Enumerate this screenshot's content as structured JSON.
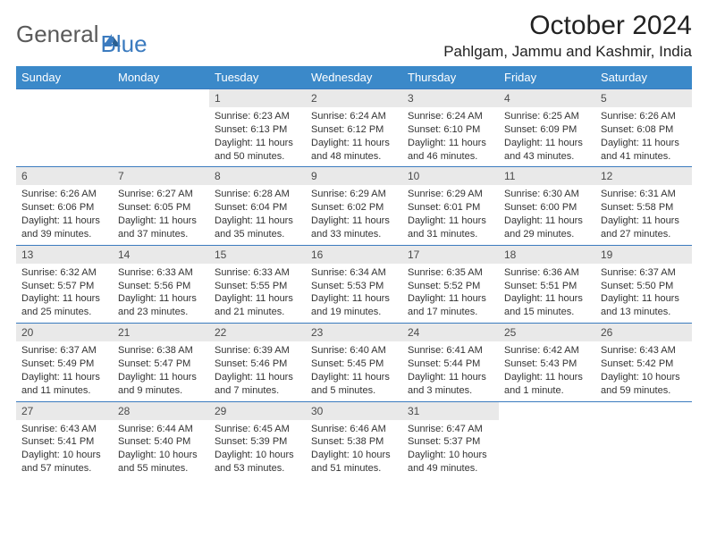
{
  "logo": {
    "part1": "General",
    "part2": "Blue"
  },
  "title": "October 2024",
  "location": "Pahlgam, Jammu and Kashmir, India",
  "colors": {
    "header_bg": "#3b89c9",
    "header_text": "#ffffff",
    "daynum_bg": "#e9e9e9",
    "border": "#3b7bbf",
    "logo_gray": "#5a5a5a",
    "logo_blue": "#3b7bbf"
  },
  "weekdays": [
    "Sunday",
    "Monday",
    "Tuesday",
    "Wednesday",
    "Thursday",
    "Friday",
    "Saturday"
  ],
  "weeks": [
    [
      {
        "n": "",
        "sr": "",
        "ss": "",
        "dl": ""
      },
      {
        "n": "",
        "sr": "",
        "ss": "",
        "dl": ""
      },
      {
        "n": "1",
        "sr": "Sunrise: 6:23 AM",
        "ss": "Sunset: 6:13 PM",
        "dl": "Daylight: 11 hours and 50 minutes."
      },
      {
        "n": "2",
        "sr": "Sunrise: 6:24 AM",
        "ss": "Sunset: 6:12 PM",
        "dl": "Daylight: 11 hours and 48 minutes."
      },
      {
        "n": "3",
        "sr": "Sunrise: 6:24 AM",
        "ss": "Sunset: 6:10 PM",
        "dl": "Daylight: 11 hours and 46 minutes."
      },
      {
        "n": "4",
        "sr": "Sunrise: 6:25 AM",
        "ss": "Sunset: 6:09 PM",
        "dl": "Daylight: 11 hours and 43 minutes."
      },
      {
        "n": "5",
        "sr": "Sunrise: 6:26 AM",
        "ss": "Sunset: 6:08 PM",
        "dl": "Daylight: 11 hours and 41 minutes."
      }
    ],
    [
      {
        "n": "6",
        "sr": "Sunrise: 6:26 AM",
        "ss": "Sunset: 6:06 PM",
        "dl": "Daylight: 11 hours and 39 minutes."
      },
      {
        "n": "7",
        "sr": "Sunrise: 6:27 AM",
        "ss": "Sunset: 6:05 PM",
        "dl": "Daylight: 11 hours and 37 minutes."
      },
      {
        "n": "8",
        "sr": "Sunrise: 6:28 AM",
        "ss": "Sunset: 6:04 PM",
        "dl": "Daylight: 11 hours and 35 minutes."
      },
      {
        "n": "9",
        "sr": "Sunrise: 6:29 AM",
        "ss": "Sunset: 6:02 PM",
        "dl": "Daylight: 11 hours and 33 minutes."
      },
      {
        "n": "10",
        "sr": "Sunrise: 6:29 AM",
        "ss": "Sunset: 6:01 PM",
        "dl": "Daylight: 11 hours and 31 minutes."
      },
      {
        "n": "11",
        "sr": "Sunrise: 6:30 AM",
        "ss": "Sunset: 6:00 PM",
        "dl": "Daylight: 11 hours and 29 minutes."
      },
      {
        "n": "12",
        "sr": "Sunrise: 6:31 AM",
        "ss": "Sunset: 5:58 PM",
        "dl": "Daylight: 11 hours and 27 minutes."
      }
    ],
    [
      {
        "n": "13",
        "sr": "Sunrise: 6:32 AM",
        "ss": "Sunset: 5:57 PM",
        "dl": "Daylight: 11 hours and 25 minutes."
      },
      {
        "n": "14",
        "sr": "Sunrise: 6:33 AM",
        "ss": "Sunset: 5:56 PM",
        "dl": "Daylight: 11 hours and 23 minutes."
      },
      {
        "n": "15",
        "sr": "Sunrise: 6:33 AM",
        "ss": "Sunset: 5:55 PM",
        "dl": "Daylight: 11 hours and 21 minutes."
      },
      {
        "n": "16",
        "sr": "Sunrise: 6:34 AM",
        "ss": "Sunset: 5:53 PM",
        "dl": "Daylight: 11 hours and 19 minutes."
      },
      {
        "n": "17",
        "sr": "Sunrise: 6:35 AM",
        "ss": "Sunset: 5:52 PM",
        "dl": "Daylight: 11 hours and 17 minutes."
      },
      {
        "n": "18",
        "sr": "Sunrise: 6:36 AM",
        "ss": "Sunset: 5:51 PM",
        "dl": "Daylight: 11 hours and 15 minutes."
      },
      {
        "n": "19",
        "sr": "Sunrise: 6:37 AM",
        "ss": "Sunset: 5:50 PM",
        "dl": "Daylight: 11 hours and 13 minutes."
      }
    ],
    [
      {
        "n": "20",
        "sr": "Sunrise: 6:37 AM",
        "ss": "Sunset: 5:49 PM",
        "dl": "Daylight: 11 hours and 11 minutes."
      },
      {
        "n": "21",
        "sr": "Sunrise: 6:38 AM",
        "ss": "Sunset: 5:47 PM",
        "dl": "Daylight: 11 hours and 9 minutes."
      },
      {
        "n": "22",
        "sr": "Sunrise: 6:39 AM",
        "ss": "Sunset: 5:46 PM",
        "dl": "Daylight: 11 hours and 7 minutes."
      },
      {
        "n": "23",
        "sr": "Sunrise: 6:40 AM",
        "ss": "Sunset: 5:45 PM",
        "dl": "Daylight: 11 hours and 5 minutes."
      },
      {
        "n": "24",
        "sr": "Sunrise: 6:41 AM",
        "ss": "Sunset: 5:44 PM",
        "dl": "Daylight: 11 hours and 3 minutes."
      },
      {
        "n": "25",
        "sr": "Sunrise: 6:42 AM",
        "ss": "Sunset: 5:43 PM",
        "dl": "Daylight: 11 hours and 1 minute."
      },
      {
        "n": "26",
        "sr": "Sunrise: 6:43 AM",
        "ss": "Sunset: 5:42 PM",
        "dl": "Daylight: 10 hours and 59 minutes."
      }
    ],
    [
      {
        "n": "27",
        "sr": "Sunrise: 6:43 AM",
        "ss": "Sunset: 5:41 PM",
        "dl": "Daylight: 10 hours and 57 minutes."
      },
      {
        "n": "28",
        "sr": "Sunrise: 6:44 AM",
        "ss": "Sunset: 5:40 PM",
        "dl": "Daylight: 10 hours and 55 minutes."
      },
      {
        "n": "29",
        "sr": "Sunrise: 6:45 AM",
        "ss": "Sunset: 5:39 PM",
        "dl": "Daylight: 10 hours and 53 minutes."
      },
      {
        "n": "30",
        "sr": "Sunrise: 6:46 AM",
        "ss": "Sunset: 5:38 PM",
        "dl": "Daylight: 10 hours and 51 minutes."
      },
      {
        "n": "31",
        "sr": "Sunrise: 6:47 AM",
        "ss": "Sunset: 5:37 PM",
        "dl": "Daylight: 10 hours and 49 minutes."
      },
      {
        "n": "",
        "sr": "",
        "ss": "",
        "dl": ""
      },
      {
        "n": "",
        "sr": "",
        "ss": "",
        "dl": ""
      }
    ]
  ]
}
